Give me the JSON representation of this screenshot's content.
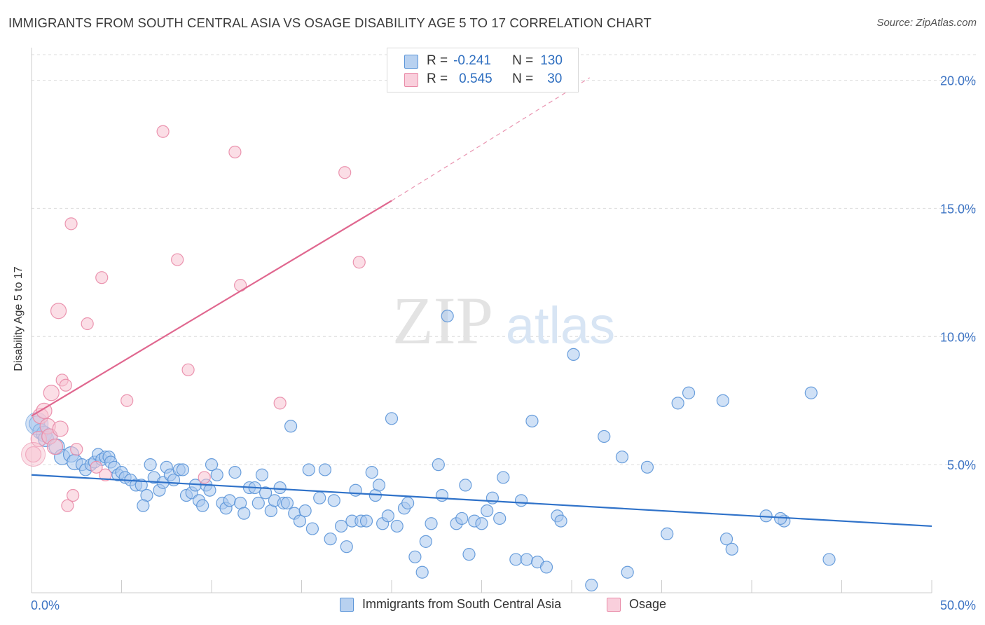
{
  "title": "IMMIGRANTS FROM SOUTH CENTRAL ASIA VS OSAGE DISABILITY AGE 5 TO 17 CORRELATION CHART",
  "source": "Source: ZipAtlas.com",
  "watermark": {
    "zip": "ZIP",
    "atlas": "atlas"
  },
  "legend_top": {
    "rows": [
      {
        "r_label": "R =",
        "r_value": "-0.241",
        "n_label": "N =",
        "n_value": "130"
      },
      {
        "r_label": "R =",
        "r_value": "0.545",
        "n_label": "N =",
        "n_value": "30"
      }
    ]
  },
  "colors": {
    "blue_fill": "#a9c8ee",
    "blue_stroke": "#5b95d8",
    "blue_line": "#2f72c9",
    "pink_fill": "#f7c3d2",
    "pink_stroke": "#e98aa7",
    "pink_line": "#e0678f",
    "tick_label": "#3d74c4",
    "grid": "#dcdcdc"
  },
  "chart_data": {
    "type": "scatter",
    "title": "IMMIGRANTS FROM SOUTH CENTRAL ASIA VS OSAGE DISABILITY AGE 5 TO 17 CORRELATION CHART",
    "xlabel": "",
    "ylabel": "Disability Age 5 to 17",
    "xlim": [
      0,
      50
    ],
    "ylim": [
      0,
      21
    ],
    "x_tick_labels": [
      "0.0%",
      "50.0%"
    ],
    "y_ticks": [
      5,
      10,
      15,
      20
    ],
    "y_tick_labels": [
      "5.0%",
      "10.0%",
      "15.0%",
      "20.0%"
    ],
    "grid": true,
    "legend": "bottom",
    "series": [
      {
        "name": "Immigrants from South Central Asia",
        "color": "#a9c8ee",
        "r": -0.241,
        "n": 130,
        "trend": {
          "x": [
            0,
            50
          ],
          "y": [
            4.6,
            2.6
          ],
          "dashed_extension": false
        },
        "points": [
          [
            0.3,
            6.6
          ],
          [
            0.5,
            6.3
          ],
          [
            0.7,
            6.2
          ],
          [
            0.8,
            6.0
          ],
          [
            1.0,
            6.1
          ],
          [
            1.4,
            5.7
          ],
          [
            1.7,
            5.3
          ],
          [
            2.2,
            5.4
          ],
          [
            2.4,
            5.1
          ],
          [
            2.8,
            5.0
          ],
          [
            3.0,
            4.8
          ],
          [
            3.3,
            5.0
          ],
          [
            3.5,
            5.1
          ],
          [
            3.7,
            5.4
          ],
          [
            3.9,
            5.2
          ],
          [
            4.1,
            5.3
          ],
          [
            4.3,
            5.3
          ],
          [
            4.4,
            5.1
          ],
          [
            4.6,
            4.9
          ],
          [
            4.8,
            4.6
          ],
          [
            5.0,
            4.7
          ],
          [
            5.2,
            4.5
          ],
          [
            5.5,
            4.4
          ],
          [
            5.8,
            4.2
          ],
          [
            6.1,
            4.2
          ],
          [
            6.4,
            3.8
          ],
          [
            6.2,
            3.4
          ],
          [
            6.6,
            5.0
          ],
          [
            6.8,
            4.5
          ],
          [
            7.1,
            4.0
          ],
          [
            7.3,
            4.3
          ],
          [
            7.5,
            4.9
          ],
          [
            7.7,
            4.6
          ],
          [
            7.9,
            4.4
          ],
          [
            8.2,
            4.8
          ],
          [
            8.4,
            4.8
          ],
          [
            8.6,
            3.8
          ],
          [
            8.9,
            3.9
          ],
          [
            9.1,
            4.2
          ],
          [
            9.3,
            3.6
          ],
          [
            9.5,
            3.4
          ],
          [
            9.7,
            4.2
          ],
          [
            9.9,
            4.0
          ],
          [
            10.0,
            5.0
          ],
          [
            10.3,
            4.6
          ],
          [
            10.6,
            3.5
          ],
          [
            10.8,
            3.3
          ],
          [
            11.0,
            3.6
          ],
          [
            11.3,
            4.7
          ],
          [
            11.6,
            3.5
          ],
          [
            11.8,
            3.1
          ],
          [
            12.1,
            4.1
          ],
          [
            12.4,
            4.1
          ],
          [
            12.6,
            3.5
          ],
          [
            12.8,
            4.6
          ],
          [
            13.0,
            3.9
          ],
          [
            13.3,
            3.2
          ],
          [
            13.5,
            3.6
          ],
          [
            13.8,
            4.1
          ],
          [
            14.0,
            3.5
          ],
          [
            14.2,
            3.5
          ],
          [
            14.4,
            6.5
          ],
          [
            14.6,
            3.1
          ],
          [
            14.9,
            2.8
          ],
          [
            15.2,
            3.2
          ],
          [
            15.4,
            4.8
          ],
          [
            15.6,
            2.5
          ],
          [
            16.0,
            3.7
          ],
          [
            16.3,
            4.8
          ],
          [
            16.6,
            2.1
          ],
          [
            16.8,
            3.6
          ],
          [
            17.2,
            2.6
          ],
          [
            17.5,
            1.8
          ],
          [
            17.8,
            2.8
          ],
          [
            18.0,
            4.0
          ],
          [
            18.3,
            2.8
          ],
          [
            18.6,
            2.8
          ],
          [
            18.9,
            4.7
          ],
          [
            19.1,
            3.8
          ],
          [
            19.3,
            4.2
          ],
          [
            19.5,
            2.7
          ],
          [
            19.8,
            3.0
          ],
          [
            20.0,
            6.8
          ],
          [
            20.3,
            2.6
          ],
          [
            20.7,
            3.3
          ],
          [
            20.9,
            3.5
          ],
          [
            21.3,
            1.4
          ],
          [
            21.7,
            0.8
          ],
          [
            21.9,
            2.0
          ],
          [
            22.2,
            2.7
          ],
          [
            22.6,
            5.0
          ],
          [
            22.8,
            3.8
          ],
          [
            23.1,
            10.8
          ],
          [
            23.6,
            2.7
          ],
          [
            23.9,
            2.9
          ],
          [
            24.1,
            4.2
          ],
          [
            24.3,
            1.5
          ],
          [
            24.6,
            2.8
          ],
          [
            25.0,
            2.7
          ],
          [
            25.3,
            3.2
          ],
          [
            25.6,
            3.7
          ],
          [
            26.0,
            2.9
          ],
          [
            26.2,
            4.5
          ],
          [
            26.9,
            1.3
          ],
          [
            27.2,
            3.6
          ],
          [
            27.5,
            1.3
          ],
          [
            27.8,
            6.7
          ],
          [
            28.1,
            1.2
          ],
          [
            28.6,
            1.0
          ],
          [
            29.2,
            3.0
          ],
          [
            29.4,
            2.8
          ],
          [
            30.1,
            9.3
          ],
          [
            31.1,
            0.3
          ],
          [
            31.8,
            6.1
          ],
          [
            32.8,
            5.3
          ],
          [
            33.1,
            0.8
          ],
          [
            34.2,
            4.9
          ],
          [
            35.3,
            2.3
          ],
          [
            35.9,
            7.4
          ],
          [
            36.5,
            7.8
          ],
          [
            38.4,
            7.5
          ],
          [
            38.6,
            2.1
          ],
          [
            38.9,
            1.7
          ],
          [
            40.8,
            3.0
          ],
          [
            41.8,
            2.8
          ],
          [
            41.6,
            2.9
          ],
          [
            43.3,
            7.8
          ],
          [
            44.3,
            1.3
          ]
        ]
      },
      {
        "name": "Osage",
        "color": "#f7c3d2",
        "r": 0.545,
        "n": 30,
        "trend": {
          "x": [
            0,
            20
          ],
          "y": [
            6.9,
            15.3
          ],
          "dashed_extension_to": [
            31,
            20.1
          ]
        },
        "points": [
          [
            0.1,
            5.4
          ],
          [
            0.4,
            6.0
          ],
          [
            0.5,
            6.9
          ],
          [
            0.7,
            7.1
          ],
          [
            0.9,
            6.5
          ],
          [
            1.0,
            6.1
          ],
          [
            1.1,
            7.8
          ],
          [
            1.3,
            5.7
          ],
          [
            1.5,
            11.0
          ],
          [
            1.6,
            6.4
          ],
          [
            1.7,
            8.3
          ],
          [
            1.9,
            8.1
          ],
          [
            2.0,
            3.4
          ],
          [
            2.2,
            14.4
          ],
          [
            2.3,
            3.8
          ],
          [
            2.5,
            5.6
          ],
          [
            3.1,
            10.5
          ],
          [
            3.9,
            12.3
          ],
          [
            4.1,
            4.6
          ],
          [
            5.3,
            7.5
          ],
          [
            7.3,
            18.0
          ],
          [
            8.1,
            13.0
          ],
          [
            8.7,
            8.7
          ],
          [
            9.6,
            4.5
          ],
          [
            11.3,
            17.2
          ],
          [
            11.6,
            12.0
          ],
          [
            13.8,
            7.4
          ],
          [
            17.4,
            16.4
          ],
          [
            18.2,
            12.9
          ],
          [
            3.6,
            4.9
          ]
        ]
      }
    ]
  },
  "legend_bottom": [
    {
      "label": "Immigrants from South Central Asia"
    },
    {
      "label": "Osage"
    }
  ]
}
